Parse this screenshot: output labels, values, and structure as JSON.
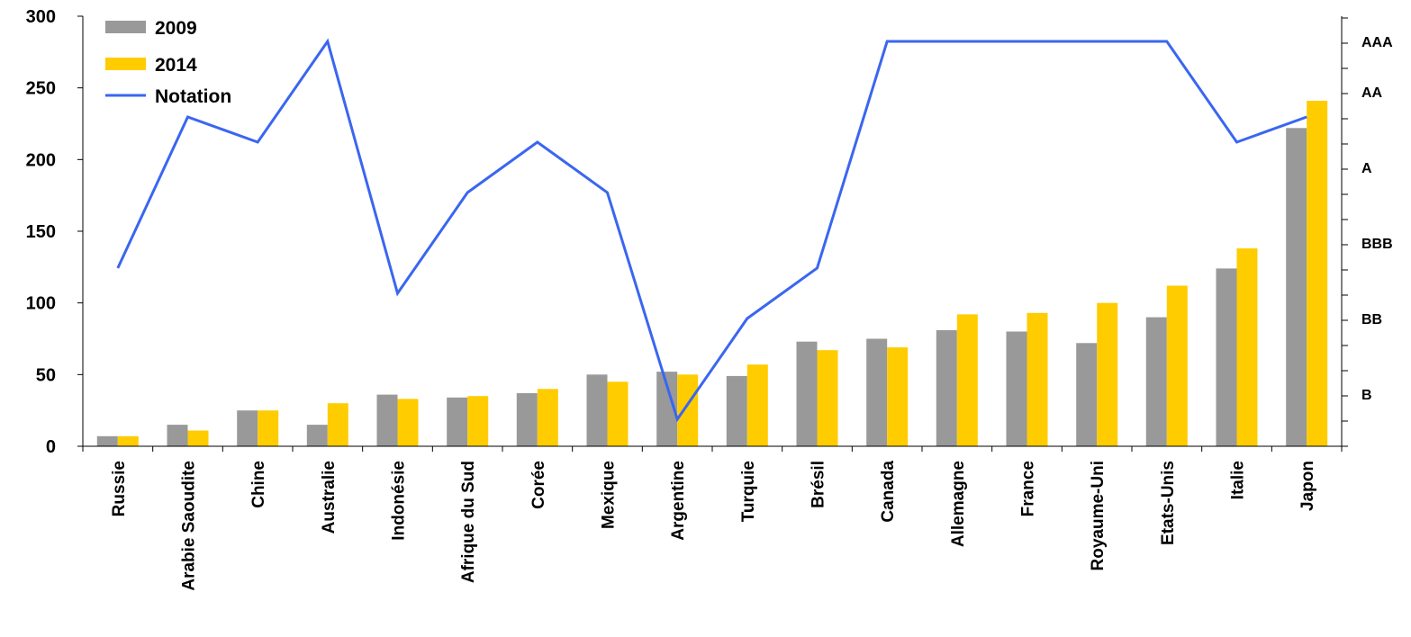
{
  "chart_data": {
    "type": "bar",
    "categories": [
      "Russie",
      "Arabie Saoudite",
      "Chine",
      "Australie",
      "Indonésie",
      "Afrique du Sud",
      "Corée",
      "Mexique",
      "Argentine",
      "Turquie",
      "Brésil",
      "Canada",
      "Allemagne",
      "France",
      "Royaume-Uni",
      "Etats-Unis",
      "Italie",
      "Japon"
    ],
    "series": [
      {
        "name": "2009",
        "type": "bar",
        "color": "#999999",
        "values": [
          7,
          15,
          25,
          15,
          36,
          34,
          37,
          50,
          52,
          49,
          73,
          75,
          81,
          80,
          72,
          90,
          124,
          222
        ]
      },
      {
        "name": "2014",
        "type": "bar",
        "color": "#ffcc00",
        "values": [
          7,
          11,
          25,
          30,
          33,
          35,
          40,
          45,
          50,
          57,
          67,
          69,
          92,
          93,
          100,
          112,
          138,
          241
        ]
      },
      {
        "name": "Notation",
        "type": "line",
        "color": "#3a66f0",
        "axis": "right",
        "values": [
          "BBB-",
          "AA-",
          "A+",
          "AAA",
          "BB+",
          "A-",
          "A+",
          "A-",
          "B-",
          "BB",
          "BBB-",
          "AAA",
          "AAA",
          "AAA",
          "AAA",
          "AAA",
          "A+",
          "AA-"
        ]
      }
    ],
    "y_left": {
      "ylim": [
        0,
        300
      ],
      "ticks": [
        "0",
        "50",
        "100",
        "150",
        "200",
        "250",
        "300"
      ]
    },
    "y_right": {
      "scale": [
        "B-",
        "B",
        "B+",
        "BB-",
        "BB",
        "BB+",
        "BBB-",
        "BBB",
        "BBB+",
        "A-",
        "A",
        "A+",
        "AA-",
        "AA",
        "AA+",
        "AAA"
      ],
      "labels": [
        "B",
        "BB",
        "BBB",
        "A",
        "AA",
        "AAA"
      ]
    },
    "legend": {
      "position": "top-left",
      "entries": [
        "2009",
        "2014",
        "Notation"
      ]
    },
    "grid": false
  }
}
